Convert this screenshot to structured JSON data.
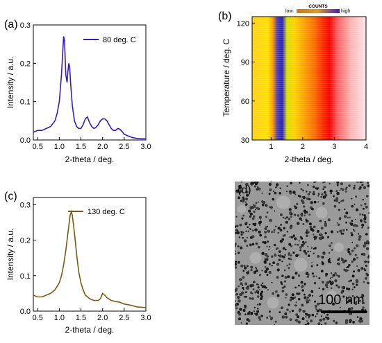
{
  "panels": {
    "a": {
      "label": "(a)"
    },
    "b": {
      "label": "(b)"
    },
    "c": {
      "label": "(c)"
    },
    "d": {
      "label": "(d)",
      "scale_bar": "100 nm"
    }
  },
  "colors": {
    "series_a": "#3a17c9",
    "series_c": "#7a5a12",
    "heat_low": "#c87a20",
    "heat_high": "#3a1fb8",
    "heat_mid": "#ffe000",
    "heat_hot": "#ff1a00"
  },
  "chart_data": [
    {
      "type": "line",
      "panel": "a",
      "xlabel": "2-theta / deg.",
      "ylabel": "Intensity / a.u.",
      "xlim": [
        0.4,
        3.0
      ],
      "ylim": [
        0,
        0.3
      ],
      "xticks": [
        "0.5",
        "1.0",
        "1.5",
        "2.0",
        "2.5",
        "3.0"
      ],
      "yticks": [
        "0.0",
        "0.1",
        "0.2",
        "0.3"
      ],
      "legend_position": "top-right",
      "series": [
        {
          "name": "80 deg. C",
          "x": [
            0.4,
            0.5,
            0.6,
            0.7,
            0.8,
            0.9,
            0.95,
            1.0,
            1.05,
            1.1,
            1.12,
            1.15,
            1.18,
            1.2,
            1.22,
            1.24,
            1.26,
            1.3,
            1.35,
            1.4,
            1.45,
            1.5,
            1.55,
            1.6,
            1.65,
            1.7,
            1.75,
            1.8,
            1.85,
            1.9,
            1.95,
            2.0,
            2.05,
            2.1,
            2.15,
            2.2,
            2.25,
            2.3,
            2.35,
            2.4,
            2.45,
            2.5,
            2.6,
            2.7,
            2.8,
            2.9,
            3.0
          ],
          "y": [
            0.02,
            0.025,
            0.025,
            0.03,
            0.035,
            0.05,
            0.07,
            0.1,
            0.17,
            0.27,
            0.26,
            0.17,
            0.15,
            0.18,
            0.2,
            0.19,
            0.15,
            0.09,
            0.05,
            0.035,
            0.03,
            0.03,
            0.04,
            0.055,
            0.06,
            0.045,
            0.035,
            0.03,
            0.033,
            0.04,
            0.05,
            0.055,
            0.055,
            0.05,
            0.04,
            0.03,
            0.025,
            0.025,
            0.03,
            0.028,
            0.022,
            0.015,
            0.01,
            0.006,
            0.004,
            0.003,
            0.003
          ]
        }
      ]
    },
    {
      "type": "heatmap",
      "panel": "b",
      "xlabel": "2-theta / deg.",
      "ylabel": "Temperature / deg. C",
      "xlim": [
        0.4,
        4.0
      ],
      "ylim": [
        30,
        125
      ],
      "xticks": [
        "1",
        "2",
        "3",
        "4"
      ],
      "yticks": [
        "30",
        "60",
        "90",
        "120"
      ],
      "colorbar": {
        "title": "COUNTS",
        "low": "low",
        "high": "high",
        "position": "top"
      },
      "stops": [
        {
          "x": 0.4,
          "color": "#ffd21a"
        },
        {
          "x": 0.9,
          "color": "#ffe000"
        },
        {
          "x": 1.05,
          "color": "#ff9a00"
        },
        {
          "x": 1.2,
          "color": "#4a3fb0"
        },
        {
          "x": 1.35,
          "color": "#2a1fc0"
        },
        {
          "x": 1.5,
          "color": "#d8e000"
        },
        {
          "x": 1.75,
          "color": "#ffd000"
        },
        {
          "x": 2.05,
          "color": "#ffa000"
        },
        {
          "x": 2.35,
          "color": "#ff7000"
        },
        {
          "x": 2.65,
          "color": "#ff2800"
        },
        {
          "x": 2.85,
          "color": "#ff0000"
        },
        {
          "x": 3.1,
          "color": "#ff6060"
        },
        {
          "x": 3.5,
          "color": "#ffb0b0"
        },
        {
          "x": 4.0,
          "color": "#ffe6e6"
        }
      ]
    },
    {
      "type": "line",
      "panel": "c",
      "xlabel": "2-theta / deg.",
      "ylabel": "Intensity / a.u.",
      "xlim": [
        0.4,
        3.0
      ],
      "ylim": [
        0,
        0.32
      ],
      "xticks": [
        "0.5",
        "1.0",
        "1.5",
        "2.0",
        "2.5",
        "3.0"
      ],
      "yticks": [
        "0.0",
        "0.1",
        "0.2",
        "0.3"
      ],
      "legend_position": "top-right",
      "series": [
        {
          "name": "130 deg. C",
          "x": [
            0.4,
            0.5,
            0.6,
            0.7,
            0.8,
            0.9,
            1.0,
            1.05,
            1.1,
            1.15,
            1.2,
            1.25,
            1.28,
            1.3,
            1.35,
            1.4,
            1.45,
            1.5,
            1.55,
            1.6,
            1.7,
            1.8,
            1.9,
            1.95,
            2.0,
            2.05,
            2.1,
            2.2,
            2.3,
            2.4,
            2.5,
            2.6,
            2.7,
            2.8,
            2.9,
            3.0
          ],
          "y": [
            0.045,
            0.04,
            0.04,
            0.045,
            0.05,
            0.06,
            0.08,
            0.1,
            0.13,
            0.17,
            0.22,
            0.27,
            0.28,
            0.27,
            0.22,
            0.16,
            0.11,
            0.08,
            0.06,
            0.045,
            0.035,
            0.03,
            0.03,
            0.035,
            0.05,
            0.045,
            0.038,
            0.03,
            0.027,
            0.025,
            0.02,
            0.018,
            0.015,
            0.012,
            0.011,
            0.01
          ]
        }
      ]
    }
  ]
}
